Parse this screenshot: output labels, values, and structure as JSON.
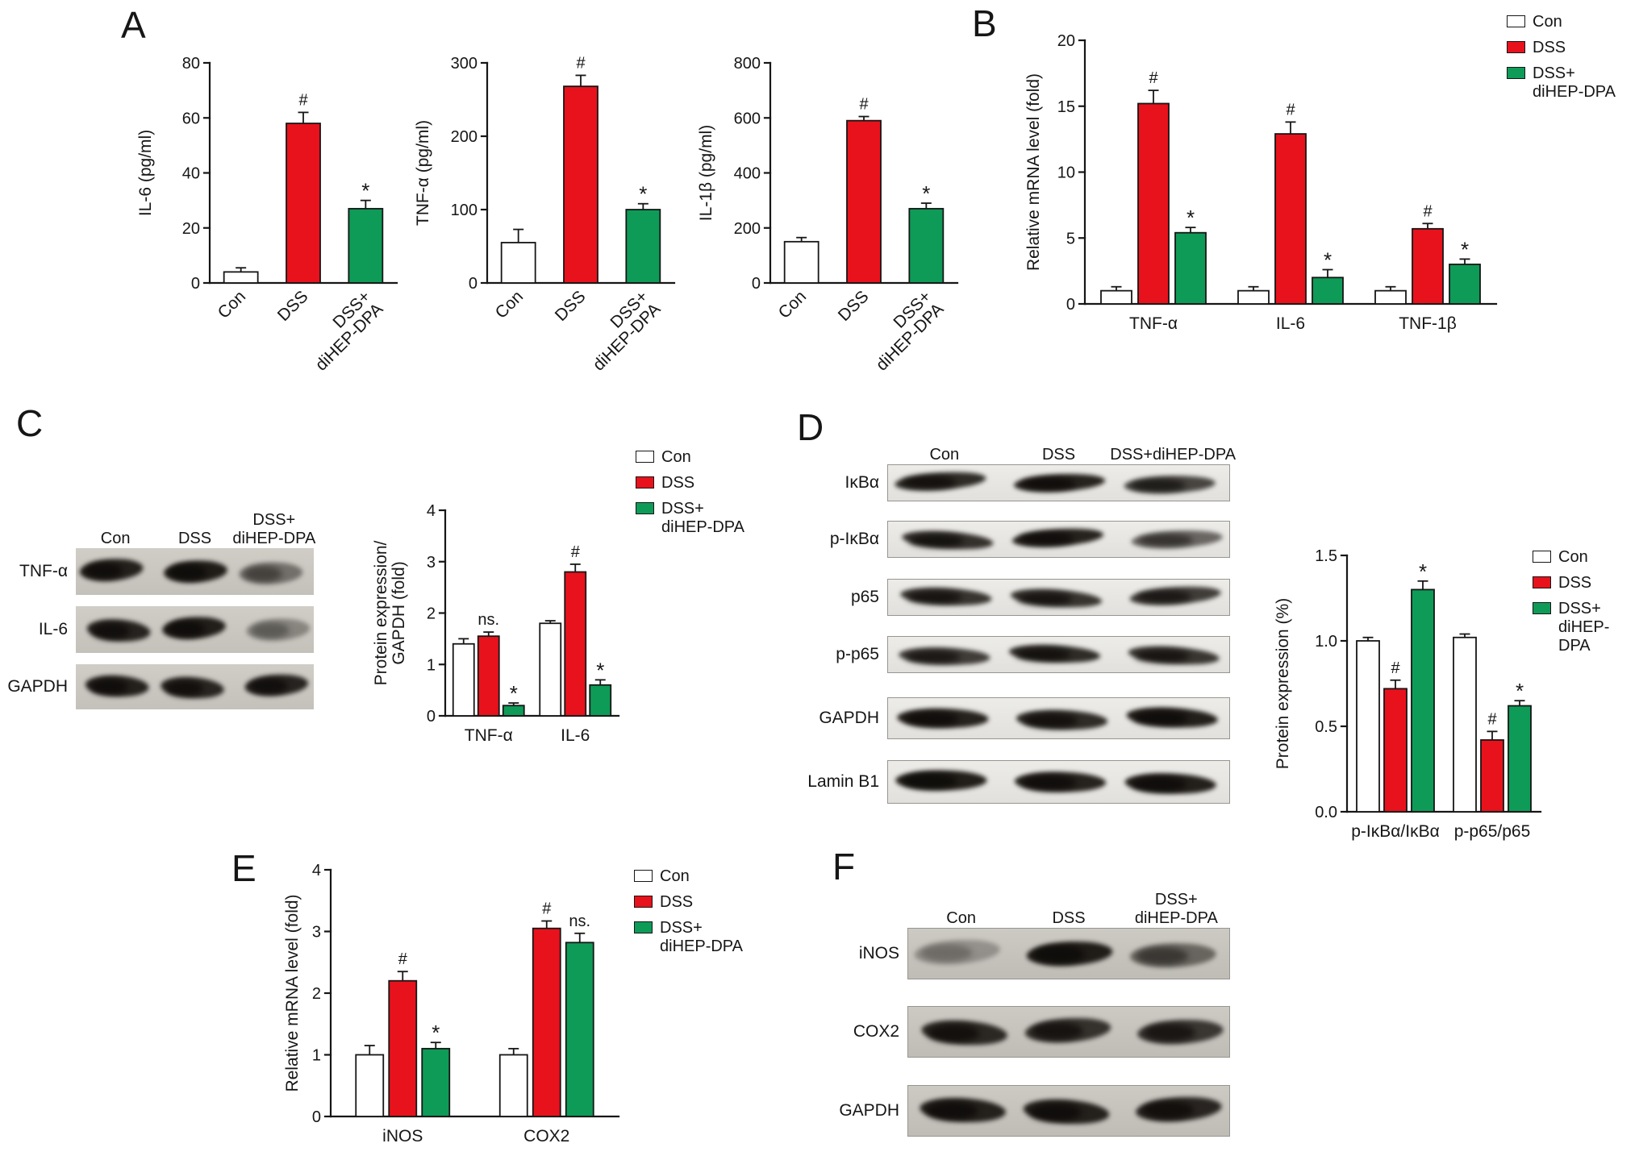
{
  "colors": {
    "con": "#ffffff",
    "dss": "#e8121c",
    "dihep": "#0e9b57",
    "axis": "#161616"
  },
  "legend": [
    "Con",
    "DSS",
    "DSS+\ndiHEP-DPA"
  ],
  "panel_labels": {
    "A": "A",
    "B": "B",
    "C": "C",
    "D": "D",
    "E": "E",
    "F": "F"
  },
  "chart_data": [
    {
      "id": "A1",
      "panel": "A",
      "type": "bar",
      "ylabel": "IL-6 (pg/ml)",
      "ylim": [
        0,
        80
      ],
      "yticks": [
        "0",
        "20",
        "40",
        "60",
        "80"
      ],
      "categories": [
        "Con",
        "DSS",
        "DSS+\ndiHEP-DPA"
      ],
      "series": [
        {
          "name": "groups",
          "colors": [
            "con",
            "dss",
            "dihep"
          ],
          "values": [
            4,
            58,
            27
          ],
          "errors": [
            1.5,
            4,
            3
          ],
          "annotations": [
            "",
            "#",
            "*"
          ]
        }
      ]
    },
    {
      "id": "A2",
      "panel": "A",
      "type": "bar",
      "ylabel": "TNF-α (pg/ml)",
      "ylim": [
        0,
        300
      ],
      "yticks": [
        "0",
        "100",
        "200",
        "300"
      ],
      "categories": [
        "Con",
        "DSS",
        "DSS+\ndiHEP-DPA"
      ],
      "series": [
        {
          "name": "groups",
          "colors": [
            "con",
            "dss",
            "dihep"
          ],
          "values": [
            55,
            268,
            100
          ],
          "errors": [
            18,
            15,
            8
          ],
          "annotations": [
            "",
            "#",
            "*"
          ]
        }
      ]
    },
    {
      "id": "A3",
      "panel": "A",
      "type": "bar",
      "ylabel": "IL-1β (pg/ml)",
      "ylim": [
        0,
        800
      ],
      "yticks": [
        "0",
        "200",
        "400",
        "600",
        "800"
      ],
      "categories": [
        "Con",
        "DSS",
        "DSS+\ndiHEP-DPA"
      ],
      "series": [
        {
          "name": "groups",
          "colors": [
            "con",
            "dss",
            "dihep"
          ],
          "values": [
            150,
            590,
            270
          ],
          "errors": [
            15,
            15,
            20
          ],
          "annotations": [
            "",
            "#",
            "*"
          ]
        }
      ]
    },
    {
      "id": "B",
      "panel": "B",
      "type": "bar",
      "ylabel": "Relative mRNA level (fold)",
      "ylim": [
        0,
        20
      ],
      "yticks": [
        "0",
        "5",
        "10",
        "15",
        "20"
      ],
      "categories": [
        "TNF-α",
        "IL-6",
        "TNF-1β"
      ],
      "legend_position": "right",
      "series": [
        {
          "name": "Con",
          "color": "con",
          "values": [
            1,
            1,
            1
          ],
          "errors": [
            0.3,
            0.3,
            0.3
          ],
          "annotations": [
            "",
            "",
            ""
          ]
        },
        {
          "name": "DSS",
          "color": "dss",
          "values": [
            15.2,
            12.9,
            5.7
          ],
          "errors": [
            1,
            0.9,
            0.4
          ],
          "annotations": [
            "#",
            "#",
            "#"
          ]
        },
        {
          "name": "DSS+diHEP-DPA",
          "color": "dihep",
          "values": [
            5.4,
            2,
            3
          ],
          "errors": [
            0.4,
            0.6,
            0.4
          ],
          "annotations": [
            "*",
            "*",
            "*"
          ]
        }
      ]
    },
    {
      "id": "C",
      "panel": "C",
      "type": "bar",
      "ylabel": "Protein expression/\nGAPDH (fold)",
      "ylim": [
        0,
        4
      ],
      "yticks": [
        "0",
        "1",
        "2",
        "3",
        "4"
      ],
      "categories": [
        "TNF-α",
        "IL-6"
      ],
      "legend_position": "right",
      "series": [
        {
          "name": "Con",
          "color": "con",
          "values": [
            1.4,
            1.8
          ],
          "errors": [
            0.1,
            0.05
          ],
          "annotations": [
            "",
            ""
          ]
        },
        {
          "name": "DSS",
          "color": "dss",
          "values": [
            1.55,
            2.8
          ],
          "errors": [
            0.08,
            0.15
          ],
          "annotations": [
            "ns.",
            "#"
          ]
        },
        {
          "name": "DSS+diHEP-DPA",
          "color": "dihep",
          "values": [
            0.2,
            0.6
          ],
          "errors": [
            0.05,
            0.1
          ],
          "annotations": [
            "*",
            "*"
          ]
        }
      ]
    },
    {
      "id": "D",
      "panel": "D",
      "type": "bar",
      "ylabel": "Protein expression (%)",
      "ylim": [
        0,
        1.5
      ],
      "yticks": [
        "0.0",
        "0.5",
        "1.0",
        "1.5"
      ],
      "categories": [
        "p-IκBα/IκBα",
        "p-p65/p65"
      ],
      "legend_position": "right",
      "series": [
        {
          "name": "Con",
          "color": "con",
          "values": [
            1.0,
            1.02
          ],
          "errors": [
            0.02,
            0.02
          ],
          "annotations": [
            "",
            ""
          ]
        },
        {
          "name": "DSS",
          "color": "dss",
          "values": [
            0.72,
            0.42
          ],
          "errors": [
            0.05,
            0.05
          ],
          "annotations": [
            "#",
            "#"
          ]
        },
        {
          "name": "DSS+diHEP-DPA",
          "color": "dihep",
          "values": [
            1.3,
            0.62
          ],
          "errors": [
            0.05,
            0.03
          ],
          "annotations": [
            "*",
            "*"
          ]
        }
      ]
    },
    {
      "id": "E",
      "panel": "E",
      "type": "bar",
      "ylabel": "Relative mRNA level (fold)",
      "ylim": [
        0,
        4
      ],
      "yticks": [
        "0",
        "1",
        "2",
        "3",
        "4"
      ],
      "categories": [
        "iNOS",
        "COX2"
      ],
      "legend_position": "right",
      "series": [
        {
          "name": "Con",
          "color": "con",
          "values": [
            1.0,
            1.0
          ],
          "errors": [
            0.15,
            0.1
          ],
          "annotations": [
            "",
            ""
          ]
        },
        {
          "name": "DSS",
          "color": "dss",
          "values": [
            2.2,
            3.05
          ],
          "errors": [
            0.15,
            0.12
          ],
          "annotations": [
            "#",
            "#"
          ]
        },
        {
          "name": "DSS+diHEP-DPA",
          "color": "dihep",
          "values": [
            1.1,
            2.82
          ],
          "errors": [
            0.1,
            0.15
          ],
          "annotations": [
            "*",
            "ns."
          ]
        }
      ]
    }
  ],
  "blots": {
    "C": {
      "lanes": [
        "Con",
        "DSS",
        "DSS+\ndiHEP-DPA"
      ],
      "rows": [
        {
          "label": "TNF-α",
          "bands": [
            0.95,
            0.97,
            0.5
          ]
        },
        {
          "label": "IL-6",
          "bands": [
            0.93,
            0.96,
            0.38
          ]
        },
        {
          "label": "GAPDH",
          "bands": [
            0.95,
            0.92,
            0.93
          ]
        }
      ]
    },
    "D": {
      "lanes": [
        "Con",
        "DSS",
        "DSS+diHEP-DPA"
      ],
      "rows": [
        {
          "label": "IκBα",
          "bands": [
            0.9,
            0.95,
            0.78
          ]
        },
        {
          "label": "p-IκBα",
          "bands": [
            0.88,
            0.95,
            0.62
          ]
        },
        {
          "label": "p65",
          "bands": [
            0.86,
            0.86,
            0.82
          ]
        },
        {
          "label": "p-p65",
          "bands": [
            0.82,
            0.9,
            0.85
          ]
        },
        {
          "label": "GAPDH",
          "bands": [
            0.95,
            0.9,
            0.96
          ]
        },
        {
          "label": "Lamin B1",
          "bands": [
            0.97,
            0.95,
            0.96
          ]
        }
      ]
    },
    "F": {
      "lanes": [
        "Con",
        "DSS",
        "DSS+\ndiHEP-DPA"
      ],
      "rows": [
        {
          "label": "iNOS",
          "bands": [
            0.3,
            0.97,
            0.55
          ]
        },
        {
          "label": "COX2",
          "bands": [
            0.9,
            0.85,
            0.82
          ]
        },
        {
          "label": "GAPDH",
          "bands": [
            0.95,
            0.95,
            0.92
          ]
        }
      ]
    }
  }
}
